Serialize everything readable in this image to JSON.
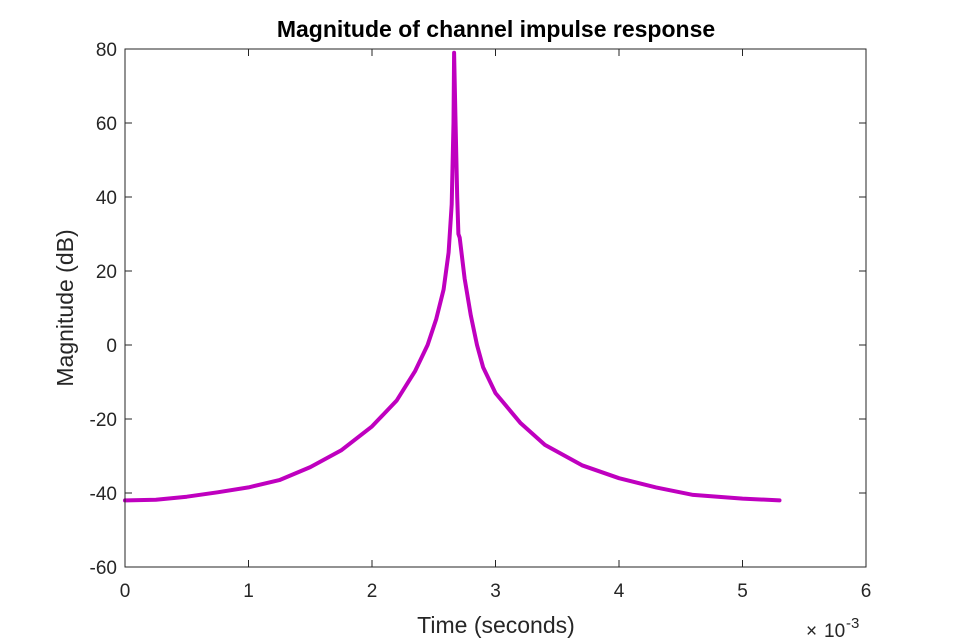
{
  "chart_data": {
    "type": "line",
    "title": "Magnitude of channel impulse response",
    "xlabel": "Time (seconds)",
    "ylabel": "Magnitude (dB)",
    "x_exponent_label": "10",
    "x_exponent_power": "-3",
    "x_multiplier": "×",
    "xlim": [
      0,
      6
    ],
    "ylim": [
      -60,
      80
    ],
    "x_ticks": [
      0,
      1,
      2,
      3,
      4,
      5,
      6
    ],
    "y_ticks": [
      -60,
      -40,
      -20,
      0,
      20,
      40,
      60,
      80
    ],
    "grid": false,
    "x_scale_note": "values in units of 1e-3 seconds",
    "series": [
      {
        "color": "#bf00bf",
        "x": [
          0,
          0.25,
          0.5,
          0.75,
          1.0,
          1.25,
          1.5,
          1.75,
          2.0,
          2.2,
          2.35,
          2.45,
          2.52,
          2.58,
          2.62,
          2.645,
          2.66,
          2.665,
          2.675,
          2.69,
          2.7,
          2.71,
          2.75,
          2.8,
          2.85,
          2.9,
          3.0,
          3.2,
          3.4,
          3.7,
          4.0,
          4.3,
          4.6,
          5.0,
          5.3
        ],
        "y": [
          -42,
          -41.8,
          -41,
          -39.8,
          -38.5,
          -36.5,
          -33,
          -28.5,
          -22,
          -15,
          -7,
          0,
          7,
          15,
          25,
          38,
          60,
          79,
          62,
          40,
          30,
          29,
          18,
          8,
          0,
          -6,
          -13,
          -21,
          -27,
          -32.5,
          -36,
          -38.5,
          -40.5,
          -41.5,
          -42
        ]
      }
    ]
  }
}
